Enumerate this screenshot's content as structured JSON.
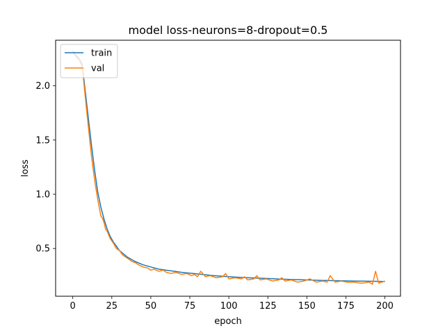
{
  "chart_data": {
    "type": "line",
    "title": "model loss-neurons=8-dropout=0.5",
    "xlabel": "epoch",
    "ylabel": "loss",
    "xlim": [
      -11,
      210
    ],
    "ylim": [
      0.06,
      2.42
    ],
    "xticks": [
      0,
      25,
      50,
      75,
      100,
      125,
      150,
      175,
      200
    ],
    "yticks": [
      0.5,
      1.0,
      1.5,
      2.0
    ],
    "ytick_labels": [
      "0.5",
      "1.0",
      "1.5",
      "2.0"
    ],
    "legend": {
      "position": "upper-left"
    },
    "grid": false,
    "series": [
      {
        "name": "train",
        "color": "#1f77b4",
        "x": [
          0,
          2,
          4,
          6,
          8,
          10,
          12,
          14,
          16,
          18,
          20,
          22,
          24,
          26,
          28,
          30,
          35,
          40,
          45,
          50,
          55,
          60,
          70,
          80,
          90,
          100,
          110,
          120,
          130,
          140,
          150,
          160,
          170,
          180,
          190,
          200
        ],
        "y": [
          2.32,
          2.28,
          2.25,
          2.2,
          1.95,
          1.7,
          1.45,
          1.22,
          1.02,
          0.88,
          0.77,
          0.68,
          0.61,
          0.56,
          0.52,
          0.48,
          0.42,
          0.38,
          0.35,
          0.33,
          0.31,
          0.3,
          0.28,
          0.265,
          0.25,
          0.24,
          0.232,
          0.226,
          0.22,
          0.214,
          0.21,
          0.206,
          0.203,
          0.2,
          0.198,
          0.196
        ]
      },
      {
        "name": "val",
        "color": "#ff7f0e",
        "x": [
          0,
          2,
          4,
          6,
          8,
          10,
          12,
          14,
          16,
          18,
          19,
          20,
          21,
          22,
          24,
          26,
          28,
          30,
          32,
          34,
          36,
          38,
          40,
          42,
          45,
          48,
          50,
          52,
          55,
          58,
          60,
          63,
          66,
          70,
          73,
          76,
          78,
          80,
          82,
          85,
          88,
          92,
          96,
          98,
          100,
          104,
          108,
          110,
          112,
          116,
          118,
          120,
          124,
          128,
          132,
          134,
          136,
          140,
          144,
          148,
          152,
          156,
          160,
          163,
          165,
          168,
          172,
          176,
          180,
          185,
          190,
          192,
          194,
          196,
          198,
          200
        ],
        "y": [
          2.31,
          2.27,
          2.24,
          2.18,
          1.9,
          1.62,
          1.35,
          1.13,
          0.95,
          0.8,
          0.78,
          0.74,
          0.68,
          0.66,
          0.59,
          0.55,
          0.5,
          0.48,
          0.44,
          0.42,
          0.4,
          0.38,
          0.37,
          0.35,
          0.33,
          0.32,
          0.3,
          0.31,
          0.29,
          0.3,
          0.28,
          0.27,
          0.28,
          0.26,
          0.27,
          0.25,
          0.26,
          0.24,
          0.29,
          0.24,
          0.25,
          0.23,
          0.24,
          0.27,
          0.22,
          0.23,
          0.22,
          0.24,
          0.21,
          0.22,
          0.25,
          0.21,
          0.22,
          0.2,
          0.21,
          0.23,
          0.2,
          0.21,
          0.19,
          0.2,
          0.22,
          0.19,
          0.2,
          0.19,
          0.25,
          0.19,
          0.2,
          0.19,
          0.19,
          0.18,
          0.19,
          0.17,
          0.29,
          0.18,
          0.19,
          0.2
        ]
      }
    ]
  }
}
